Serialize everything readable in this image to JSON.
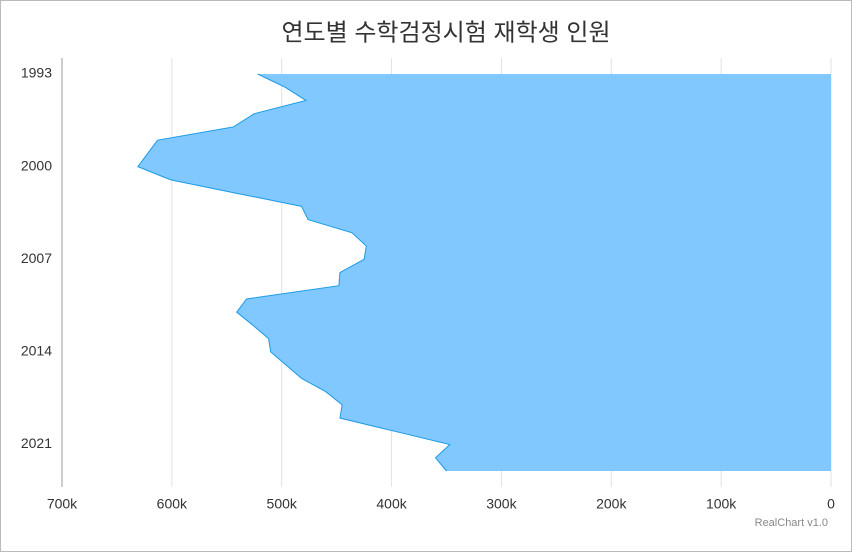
{
  "chart_data": {
    "type": "area",
    "orientation": "horizontal",
    "title": "연도별 수학검정시험 재학생 인원",
    "credit": "RealChart v1.0",
    "x": [
      1993,
      1994,
      1995,
      1996,
      1997,
      1998,
      1999,
      2000,
      2001,
      2002,
      2003,
      2004,
      2005,
      2006,
      2007,
      2008,
      2009,
      2010,
      2011,
      2012,
      2013,
      2014,
      2015,
      2016,
      2017,
      2018,
      2019,
      2020,
      2021,
      2022,
      2023
    ],
    "xlim": [
      1993,
      2023
    ],
    "xticks": [
      1993,
      2000,
      2007,
      2014,
      2021
    ],
    "series": [
      {
        "color": "#80c8ff",
        "line_color": "#1a9be6",
        "values": [
          522000,
          497000,
          478000,
          525000,
          544000,
          613000,
          622000,
          631000,
          601000,
          542000,
          482000,
          476000,
          436000,
          423000,
          425000,
          447000,
          448000,
          532000,
          541000,
          526000,
          512000,
          510000,
          496000,
          482000,
          460000,
          445000,
          447000,
          397000,
          347000,
          360000,
          350000
        ]
      }
    ],
    "ylim": [
      0,
      700000
    ],
    "yreversed": true,
    "yticks": [
      {
        "value": 700000,
        "label": "700k"
      },
      {
        "value": 600000,
        "label": "600k"
      },
      {
        "value": 500000,
        "label": "500k"
      },
      {
        "value": 400000,
        "label": "400k"
      },
      {
        "value": 300000,
        "label": "300k"
      },
      {
        "value": 200000,
        "label": "200k"
      },
      {
        "value": 100000,
        "label": "100k"
      },
      0
    ],
    "grid": true
  }
}
